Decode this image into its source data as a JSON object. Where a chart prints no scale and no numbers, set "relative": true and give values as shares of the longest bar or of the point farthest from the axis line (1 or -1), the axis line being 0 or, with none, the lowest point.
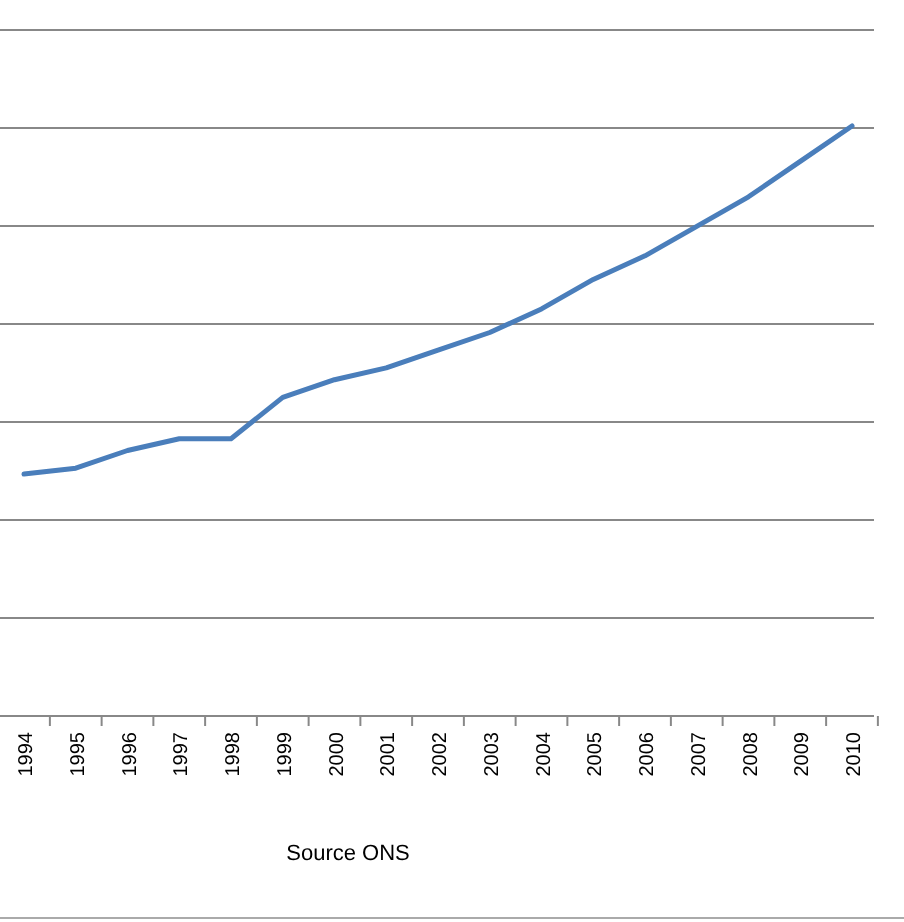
{
  "chart_data": {
    "type": "line",
    "relative": true,
    "grid": true,
    "categories": [
      "1994",
      "1995",
      "1996",
      "1997",
      "1998",
      "1999",
      "2000",
      "2001",
      "2002",
      "2003",
      "2004",
      "2005",
      "2006",
      "2007",
      "2008",
      "2009",
      "2010"
    ],
    "series": [
      {
        "color": "#4a7ebb",
        "values": [
          0.41,
          0.42,
          0.45,
          0.47,
          0.47,
          0.54,
          0.57,
          0.59,
          0.62,
          0.65,
          0.69,
          0.74,
          0.78,
          0.83,
          0.88,
          0.94,
          1
        ]
      }
    ],
    "annotations": [
      "Source ONS"
    ]
  }
}
